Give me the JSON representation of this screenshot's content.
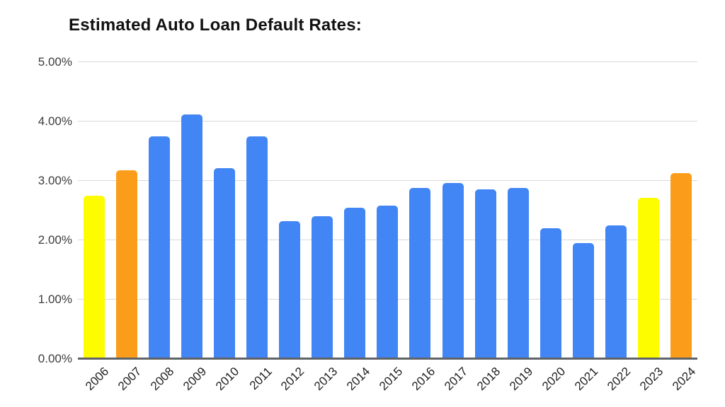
{
  "page": {
    "background": "#ffffff"
  },
  "chart_data": {
    "type": "bar",
    "title": "Estimated Auto Loan Default Rates:",
    "xlabel": "",
    "ylabel": "",
    "ylim": [
      0,
      5
    ],
    "grid": true,
    "legend": false,
    "yticks": [
      "0.00%",
      "1.00%",
      "2.00%",
      "3.00%",
      "4.00%",
      "5.00%"
    ],
    "categories": [
      "2006",
      "2007",
      "2008",
      "2009",
      "2010",
      "2011",
      "2012",
      "2013",
      "2014",
      "2015",
      "2016",
      "2017",
      "2018",
      "2019",
      "2020",
      "2021",
      "2022",
      "2023",
      "2024"
    ],
    "values": [
      2.75,
      3.18,
      3.75,
      4.12,
      3.22,
      3.75,
      2.32,
      2.41,
      2.55,
      2.58,
      2.88,
      2.96,
      2.86,
      2.88,
      2.2,
      1.95,
      2.25,
      2.72,
      3.13
    ],
    "bar_colors": [
      "#FDFD00",
      "#FB9D1B",
      "#4285F4",
      "#4285F4",
      "#4285F4",
      "#4285F4",
      "#4285F4",
      "#4285F4",
      "#4285F4",
      "#4285F4",
      "#4285F4",
      "#4285F4",
      "#4285F4",
      "#4285F4",
      "#4285F4",
      "#4285F4",
      "#4285F4",
      "#FDFD00",
      "#FB9D1B"
    ],
    "colors": {
      "default_bar": "#4285F4",
      "highlight_yellow": "#FDFD00",
      "highlight_orange": "#FB9D1B",
      "gridline": "#d9d9d9",
      "axis_line": "#5f6368",
      "title_text": "#111111",
      "tick_text": "#3c3c3c"
    }
  }
}
